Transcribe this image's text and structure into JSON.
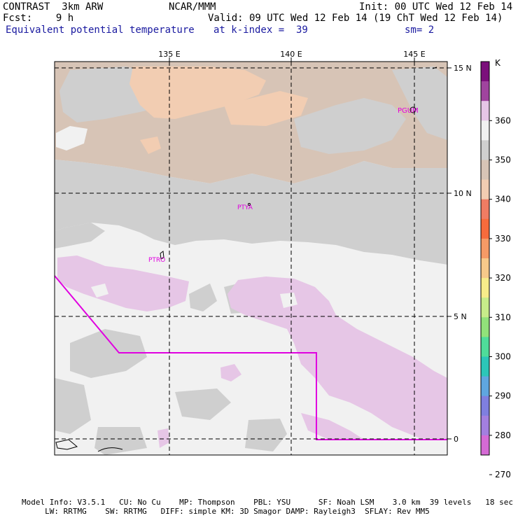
{
  "header": {
    "line1_left": "CONTRAST  3km ARW",
    "line1_center": "NCAR/MMM",
    "line1_right": "Init: 00 UTC Wed 12 Feb 14",
    "line2_left": "Fcst:    9 h",
    "line2_right": "Valid: 09 UTC Wed 12 Feb 14 (19 ChT Wed 12 Feb 14)",
    "line3_left": "Equivalent potential temperature",
    "line3_center": "at k-index =  39",
    "line3_right": "sm= 2"
  },
  "map": {
    "lon_labels": [
      "135 E",
      "140 E",
      "145 E"
    ],
    "lat_labels": [
      "15 N",
      "10 N",
      "5 N",
      "0"
    ],
    "station_labels": [
      "PGUM",
      "PTYA",
      "PTRO"
    ]
  },
  "colorbar": {
    "unit": "K",
    "tick_labels": [
      "360",
      "350",
      "340",
      "330",
      "320",
      "310",
      "300",
      "290",
      "280",
      "270"
    ],
    "colors": [
      "#7b0f7b",
      "#a0449e",
      "#e6c6e6",
      "#f1f1f1",
      "#cfcfcf",
      "#d7c4b6",
      "#f2cdb2",
      "#f07c63",
      "#f76b3c",
      "#f59a66",
      "#f7c98a",
      "#f7ec8a",
      "#c7ec8a",
      "#91e27a",
      "#4fdc9a",
      "#2cc6b8",
      "#5fa6df",
      "#7f7fdf",
      "#a37fdf",
      "#d56ad5"
    ]
  },
  "footer": {
    "line1": "Model Info: V3.5.1   CU: No Cu    MP: Thompson    PBL: YSU      SF: Noah LSM    3.0 km  39 levels   18 sec",
    "line2": "     LW: RRTMG    SW: RRTMG   DIFF: simple KM: 3D Smagor DAMP: Rayleigh3  SFLAY: Rev MM5"
  }
}
